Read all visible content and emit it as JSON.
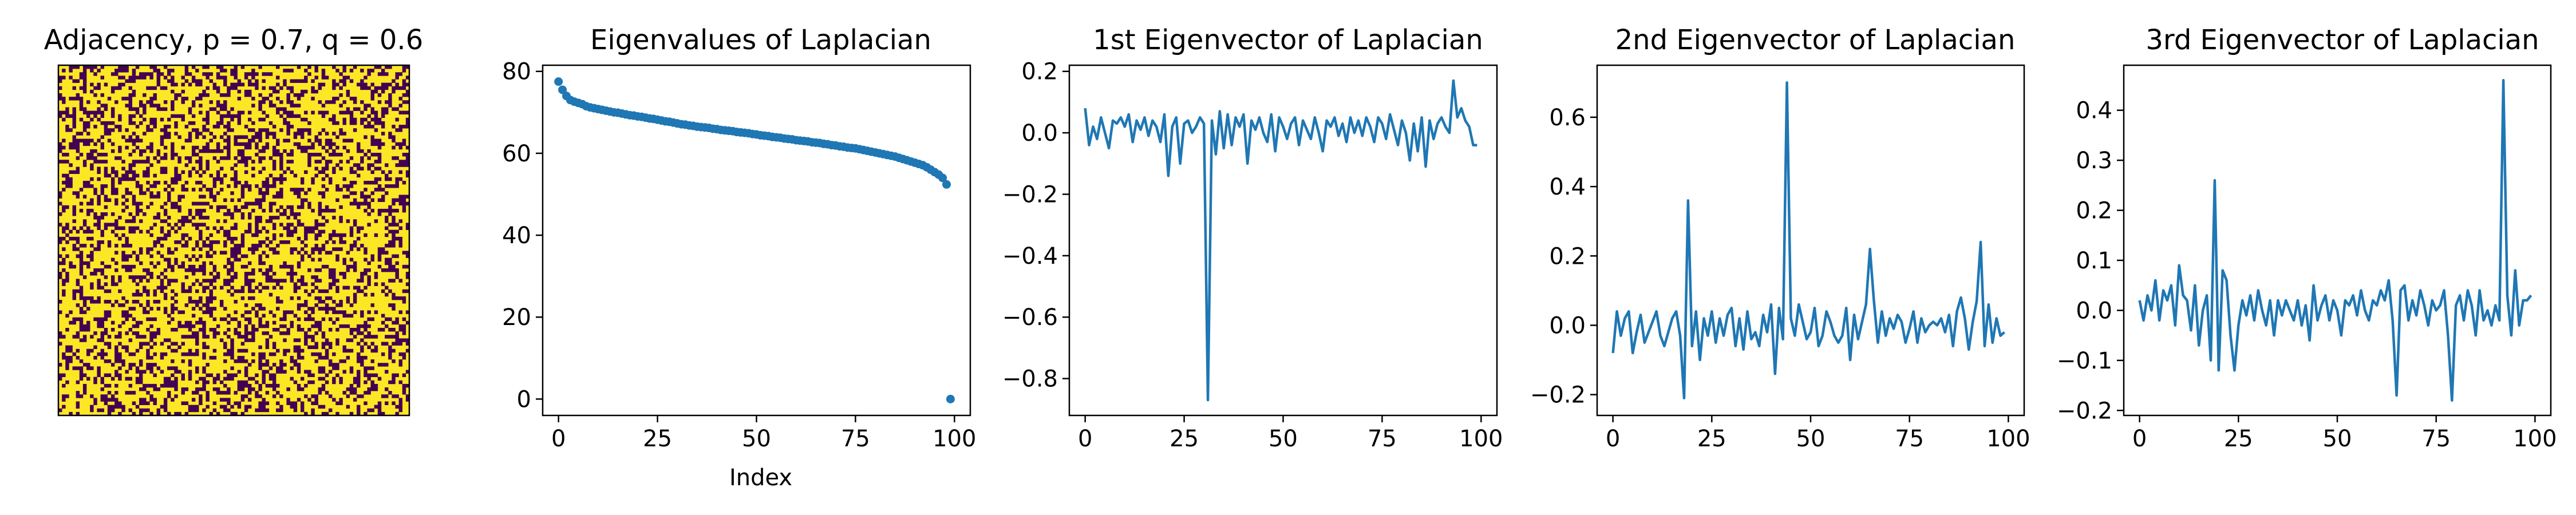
{
  "chart_data": [
    {
      "type": "heatmap",
      "title": "Adjacency, p = 0.7, q = 0.6",
      "rows": 100,
      "cols": 100,
      "density": 0.66,
      "colors": {
        "one": "#fde725",
        "zero": "#440154"
      },
      "axes_visible": false
    },
    {
      "type": "scatter",
      "title": "Eigenvalues of Laplacian",
      "xlabel": "Index",
      "ylabel": "",
      "xlim": [
        -4,
        104
      ],
      "ylim": [
        -4,
        81.5
      ],
      "xticks": [
        0,
        25,
        50,
        75,
        100
      ],
      "yticks": [
        0,
        20,
        40,
        60,
        80
      ],
      "color": "#1f77b4",
      "series": [
        {
          "values": [
            77.5,
            75.5,
            74.0,
            73.0,
            72.6,
            72.3,
            72.0,
            71.5,
            71.2,
            71.0,
            70.8,
            70.6,
            70.4,
            70.2,
            70.0,
            69.9,
            69.7,
            69.5,
            69.3,
            69.2,
            69.0,
            68.9,
            68.7,
            68.5,
            68.4,
            68.2,
            68.0,
            67.8,
            67.7,
            67.5,
            67.3,
            67.1,
            67.0,
            66.8,
            66.7,
            66.5,
            66.4,
            66.3,
            66.2,
            66.0,
            65.9,
            65.7,
            65.6,
            65.5,
            65.4,
            65.2,
            65.1,
            65.0,
            64.9,
            64.7,
            64.6,
            64.4,
            64.3,
            64.2,
            64.0,
            63.9,
            63.8,
            63.6,
            63.5,
            63.4,
            63.2,
            63.1,
            63.0,
            62.9,
            62.7,
            62.6,
            62.5,
            62.3,
            62.2,
            62.0,
            61.9,
            61.7,
            61.6,
            61.4,
            61.3,
            61.2,
            61.0,
            60.8,
            60.6,
            60.4,
            60.2,
            60.0,
            59.8,
            59.6,
            59.4,
            59.2,
            58.9,
            58.6,
            58.3,
            58.0,
            57.7,
            57.4,
            57.1,
            56.6,
            56.0,
            55.4,
            54.8,
            54.0,
            52.4,
            0.0
          ]
        }
      ]
    },
    {
      "type": "line",
      "title": "1st Eigenvector of Laplacian",
      "xlabel": "",
      "ylabel": "",
      "xlim": [
        -4,
        104
      ],
      "ylim": [
        -0.92,
        0.22
      ],
      "xticks": [
        0,
        25,
        50,
        75,
        100
      ],
      "yticks": [
        0.2,
        0.0,
        -0.2,
        -0.4,
        -0.6,
        -0.8
      ],
      "color": "#1f77b4",
      "series": [
        {
          "values": [
            0.08,
            -0.04,
            0.02,
            -0.02,
            0.05,
            0.0,
            -0.05,
            0.04,
            0.03,
            0.05,
            0.02,
            0.06,
            -0.03,
            0.04,
            0.01,
            0.05,
            -0.01,
            0.04,
            0.02,
            -0.03,
            0.06,
            -0.14,
            0.02,
            0.05,
            -0.1,
            0.03,
            0.04,
            0.0,
            0.02,
            0.05,
            0.03,
            -0.87,
            0.04,
            -0.07,
            0.07,
            -0.05,
            0.06,
            -0.04,
            0.05,
            0.02,
            0.06,
            -0.1,
            0.04,
            0.01,
            0.05,
            0.0,
            -0.03,
            0.06,
            -0.06,
            0.05,
            0.02,
            -0.02,
            0.03,
            0.05,
            -0.04,
            0.04,
            0.01,
            -0.02,
            0.05,
            0.0,
            -0.06,
            0.04,
            0.02,
            0.05,
            -0.01,
            0.03,
            -0.03,
            0.05,
            0.0,
            0.04,
            -0.01,
            0.05,
            0.02,
            -0.03,
            0.05,
            0.03,
            -0.02,
            0.06,
            0.01,
            -0.04,
            0.04,
            0.0,
            -0.09,
            0.03,
            -0.06,
            0.05,
            -0.11,
            0.04,
            -0.02,
            0.03,
            0.05,
            0.02,
            0.0,
            0.17,
            0.05,
            0.08,
            0.04,
            0.02,
            -0.04,
            -0.04
          ]
        }
      ]
    },
    {
      "type": "line",
      "title": "2nd Eigenvector of Laplacian",
      "xlabel": "",
      "ylabel": "",
      "xlim": [
        -4,
        104
      ],
      "ylim": [
        -0.26,
        0.75
      ],
      "xticks": [
        0,
        25,
        50,
        75,
        100
      ],
      "yticks": [
        0.6,
        0.4,
        0.2,
        0.0,
        -0.2
      ],
      "color": "#1f77b4",
      "series": [
        {
          "values": [
            -0.08,
            0.04,
            -0.03,
            0.02,
            0.04,
            -0.08,
            -0.02,
            0.03,
            -0.05,
            -0.02,
            0.01,
            0.04,
            -0.03,
            -0.06,
            -0.02,
            0.02,
            0.04,
            -0.03,
            -0.21,
            0.36,
            -0.06,
            0.04,
            -0.1,
            0.02,
            -0.03,
            0.04,
            -0.05,
            0.02,
            -0.03,
            0.03,
            0.05,
            -0.06,
            0.02,
            -0.07,
            0.04,
            -0.04,
            -0.02,
            -0.06,
            0.03,
            -0.02,
            0.06,
            -0.14,
            0.05,
            -0.04,
            0.7,
            0.02,
            -0.03,
            0.06,
            0.01,
            -0.04,
            -0.02,
            0.05,
            -0.06,
            -0.03,
            0.04,
            0.01,
            -0.03,
            -0.05,
            -0.03,
            0.05,
            -0.1,
            0.03,
            -0.04,
            0.01,
            0.06,
            0.22,
            0.07,
            -0.05,
            0.04,
            -0.03,
            0.02,
            -0.01,
            0.03,
            0.01,
            -0.05,
            -0.01,
            0.04,
            -0.05,
            0.02,
            -0.02,
            0.0,
            0.01,
            0.0,
            0.02,
            -0.02,
            0.03,
            -0.06,
            0.04,
            0.08,
            0.02,
            -0.07,
            0.01,
            0.07,
            0.24,
            -0.06,
            0.06,
            -0.05,
            0.02,
            -0.03,
            -0.02
          ]
        }
      ]
    },
    {
      "type": "line",
      "title": "3rd Eigenvector of Laplacian",
      "xlabel": "",
      "ylabel": "",
      "xlim": [
        -4,
        104
      ],
      "ylim": [
        -0.21,
        0.49
      ],
      "xticks": [
        0,
        25,
        50,
        75,
        100
      ],
      "yticks": [
        0.4,
        0.3,
        0.2,
        0.1,
        0.0,
        -0.1,
        -0.2
      ],
      "color": "#1f77b4",
      "series": [
        {
          "values": [
            0.02,
            -0.02,
            0.03,
            0.0,
            0.06,
            -0.02,
            0.04,
            0.02,
            0.05,
            -0.03,
            0.09,
            0.03,
            0.02,
            -0.04,
            0.05,
            -0.07,
            0.0,
            0.03,
            -0.1,
            0.26,
            -0.12,
            0.08,
            0.06,
            -0.05,
            -0.12,
            -0.03,
            0.02,
            -0.01,
            0.03,
            -0.02,
            0.04,
            0.0,
            -0.03,
            0.02,
            -0.05,
            0.02,
            -0.01,
            0.02,
            0.0,
            -0.02,
            0.02,
            -0.03,
            0.01,
            -0.06,
            0.05,
            -0.02,
            0.01,
            0.03,
            -0.02,
            0.02,
            0.0,
            -0.05,
            0.02,
            0.01,
            0.03,
            -0.01,
            0.04,
            0.0,
            -0.02,
            0.02,
            0.01,
            0.04,
            0.02,
            0.06,
            -0.02,
            -0.17,
            0.04,
            0.05,
            -0.02,
            0.02,
            -0.01,
            0.04,
            0.01,
            -0.03,
            0.02,
            0.0,
            0.01,
            0.04,
            -0.05,
            -0.18,
            0.01,
            0.03,
            -0.02,
            0.04,
            0.01,
            -0.05,
            0.04,
            -0.02,
            0.0,
            -0.03,
            0.01,
            -0.02,
            0.46,
            0.03,
            -0.05,
            0.08,
            -0.03,
            0.02,
            0.02,
            0.03
          ]
        }
      ]
    }
  ]
}
